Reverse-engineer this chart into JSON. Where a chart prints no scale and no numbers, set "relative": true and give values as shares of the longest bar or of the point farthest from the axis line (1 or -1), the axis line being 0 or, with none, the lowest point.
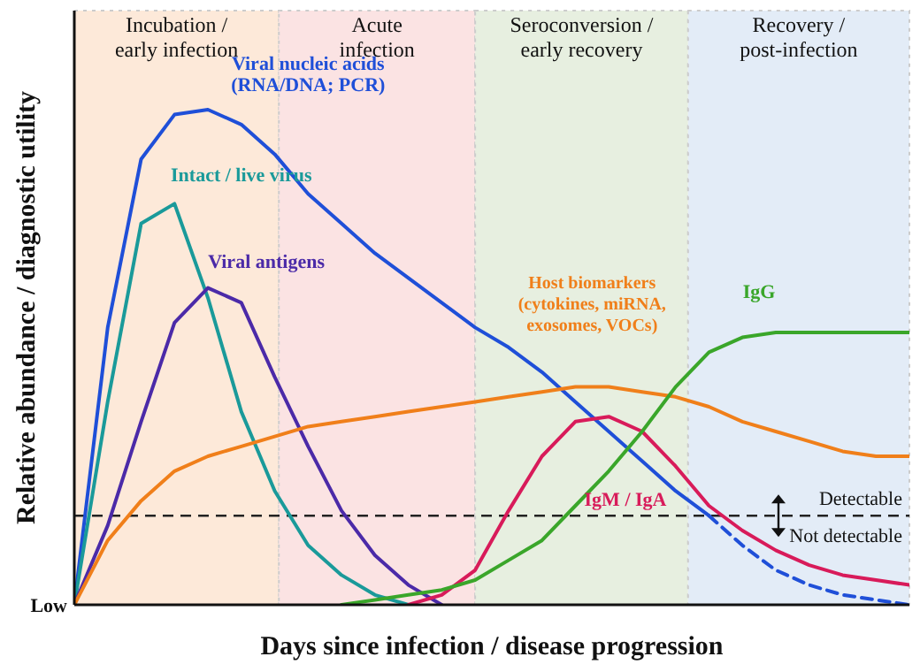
{
  "chart_data": {
    "type": "line",
    "relative": true,
    "categories": [
      null,
      null,
      null,
      null,
      null,
      null,
      null,
      null,
      null,
      null,
      null,
      null,
      null,
      null,
      null,
      null,
      null,
      null,
      null,
      null,
      null,
      null,
      null,
      null,
      null,
      null
    ],
    "xlabel": "Days since infection / disease progression",
    "ylabel": "Relative abundance / diagnostic utility",
    "marker": "none",
    "series": [
      {
        "name": "Viral nucleic acids (RNA/DNA; PCR)",
        "color": "#1f4fd8",
        "line_style": "solid",
        "values": [
          0,
          0.56,
          0.9,
          0.99,
          1,
          0.97,
          0.91,
          0.83,
          0.77,
          0.71,
          0.66,
          0.61,
          0.56,
          0.52,
          0.47,
          0.41,
          0.35,
          0.29,
          0.23,
          0.18,
          null,
          null,
          null,
          null,
          null,
          null
        ]
      },
      {
        "color": "#1f4fd8",
        "line_style": "dashed",
        "values": [
          null,
          null,
          null,
          null,
          null,
          null,
          null,
          null,
          null,
          null,
          null,
          null,
          null,
          null,
          null,
          null,
          null,
          null,
          null,
          0.18,
          0.12,
          0.07,
          0.04,
          0.02,
          0.01,
          0
        ]
      },
      {
        "name": "Intact / live virus",
        "color": "#1a9a9a",
        "line_style": "solid",
        "values": [
          0,
          0.41,
          0.77,
          0.81,
          0.62,
          0.39,
          0.23,
          0.12,
          0.06,
          0.02,
          0,
          null,
          null,
          null,
          null,
          null,
          null,
          null,
          null,
          null,
          null,
          null,
          null,
          null,
          null,
          null
        ]
      },
      {
        "name": "Viral antigens",
        "color": "#4b2aa8",
        "line_style": "solid",
        "values": [
          0,
          0.16,
          0.37,
          0.57,
          0.64,
          0.61,
          0.46,
          0.32,
          0.19,
          0.1,
          0.04,
          0,
          null,
          null,
          null,
          null,
          null,
          null,
          null,
          null,
          null,
          null,
          null,
          null,
          null,
          null
        ]
      },
      {
        "name": "Host biomarkers (cytokines, miRNA, exosomes, VOCs)",
        "color": "#f07f1a",
        "line_style": "solid",
        "values": [
          0,
          0.13,
          0.21,
          0.27,
          0.3,
          0.32,
          0.34,
          0.36,
          0.37,
          0.38,
          0.39,
          0.4,
          0.41,
          0.42,
          0.43,
          0.44,
          0.44,
          0.43,
          0.42,
          0.4,
          0.37,
          0.35,
          0.33,
          0.31,
          0.3,
          0.3
        ]
      },
      {
        "name": "IgM / IgA",
        "color": "#d81b5a",
        "line_style": "solid",
        "values": [
          null,
          null,
          null,
          null,
          null,
          null,
          null,
          null,
          null,
          null,
          0,
          0.02,
          0.07,
          0.19,
          0.3,
          0.37,
          0.38,
          0.35,
          0.28,
          0.2,
          0.15,
          0.11,
          0.08,
          0.06,
          0.05,
          0.04
        ]
      },
      {
        "name": "IgG",
        "color": "#3aa62a",
        "line_style": "solid",
        "values": [
          null,
          null,
          null,
          null,
          null,
          null,
          null,
          null,
          0,
          0.01,
          0.02,
          0.03,
          0.05,
          0.09,
          0.13,
          0.2,
          0.27,
          0.35,
          0.44,
          0.51,
          0.54,
          0.55,
          0.55,
          0.55,
          0.55,
          0.55
        ]
      }
    ],
    "ref_lines": [
      {
        "axis": "y",
        "value": 0.18,
        "label": "Detectable",
        "color": "#222222",
        "line_style": "dashed"
      }
    ],
    "annotations": [
      "Incubation / early infection",
      "Acute infection",
      "Seroconversion / early recovery",
      "Recovery / post-infection",
      "Not detectable",
      "Low"
    ]
  }
}
